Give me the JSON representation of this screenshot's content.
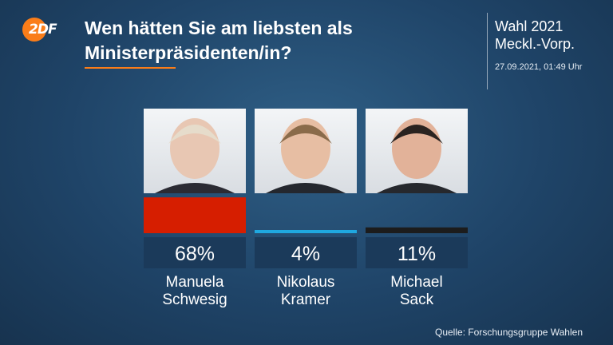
{
  "brand": {
    "name": "ZDF",
    "logo_text": "2DF",
    "color": "#fa7d19"
  },
  "header": {
    "title_line1": "Wen hätten Sie am liebsten als",
    "title_line2": "Ministerpräsidenten/in?",
    "event_line1": "Wahl 2021",
    "event_line2": "Meckl.-Vorp.",
    "timestamp": "27.09.2021, 01:49 Uhr"
  },
  "chart_data": {
    "type": "bar",
    "title": "Wen hätten Sie am liebsten als Ministerpräsidenten/in?",
    "categories": [
      "Manuela Schwesig",
      "Nikolaus Kramer",
      "Michael Sack"
    ],
    "category_lines": [
      [
        "Manuela",
        "Schwesig"
      ],
      [
        "Nikolaus",
        "Kramer"
      ],
      [
        "Michael",
        "Sack"
      ]
    ],
    "values": [
      68,
      4,
      11
    ],
    "value_labels": [
      "68%",
      "4%",
      "11%"
    ],
    "colors": [
      "#d61e00",
      "#1fa8e0",
      "#1c1c1c"
    ],
    "unit": "%",
    "ylim": [
      0,
      100
    ],
    "grid": false,
    "legend": "none"
  },
  "footer": {
    "source": "Quelle: Forschungsgruppe Wahlen"
  }
}
